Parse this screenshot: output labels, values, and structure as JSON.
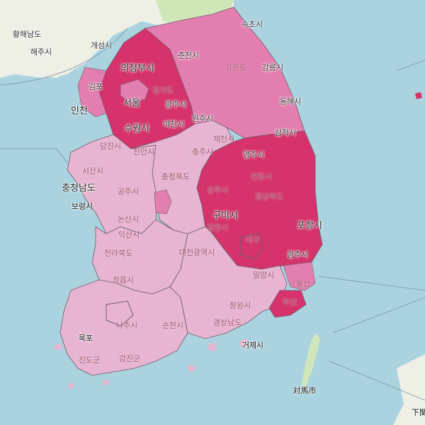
{
  "colors": {
    "sea": "#aad3df",
    "land": "#eef0e6",
    "land_green": "#cfe6b8",
    "tier_high": "#d6336c",
    "tier_mid": "#e37fb0",
    "tier_low": "#e7b5d2",
    "border": "#6e5a66"
  },
  "labels": {
    "hwanghae": "황해남도",
    "haeju": "해주시",
    "kaesong": "개성시",
    "sokcho": "속초시",
    "uijeongbu": "의정부시",
    "chuncheon": "춘천시",
    "gangwon": "강원도",
    "gangneung": "강릉시",
    "gimpo": "김포",
    "incheon": "인천",
    "gyeonggi": "경기도",
    "seoul": "서울",
    "gwangju_gg": "광주시",
    "suwon": "수원시",
    "icheon": "이천시",
    "wonju": "원주시",
    "donghae": "동해시",
    "dangjin": "당진시",
    "cheonan": "천안시",
    "jecheon": "제천시",
    "samcheok": "삼척시",
    "chungju": "충주시",
    "yeongju": "영주시",
    "seosan": "서산시",
    "chungbuk": "충청북도",
    "chungnam": "충청남도",
    "andong": "안동시",
    "gongju": "공주시",
    "sangju": "상주시",
    "gyeongbuk": "경상북도",
    "boryeong": "보령시",
    "nonsan": "논산시",
    "gumi": "구미시",
    "gimcheon": "김천시",
    "pohang": "포항시",
    "iksan": "익산시",
    "jeonbuk": "전라북도",
    "daegu": "대구",
    "gyeongju": "경주시",
    "daejeon_area": "대전광역시",
    "miryang": "밀양시",
    "jeongeup": "정읍시",
    "ulsan": "울산",
    "changwon": "창원시",
    "busan": "부산",
    "naju": "나주시",
    "suncheon": "순천시",
    "gyeongnam": "경상남도",
    "mokpo": "목포",
    "geoje": "거제시",
    "jindo": "진도군",
    "gangjin": "강진군",
    "tsushima": "対馬市",
    "shimo": "下関"
  }
}
